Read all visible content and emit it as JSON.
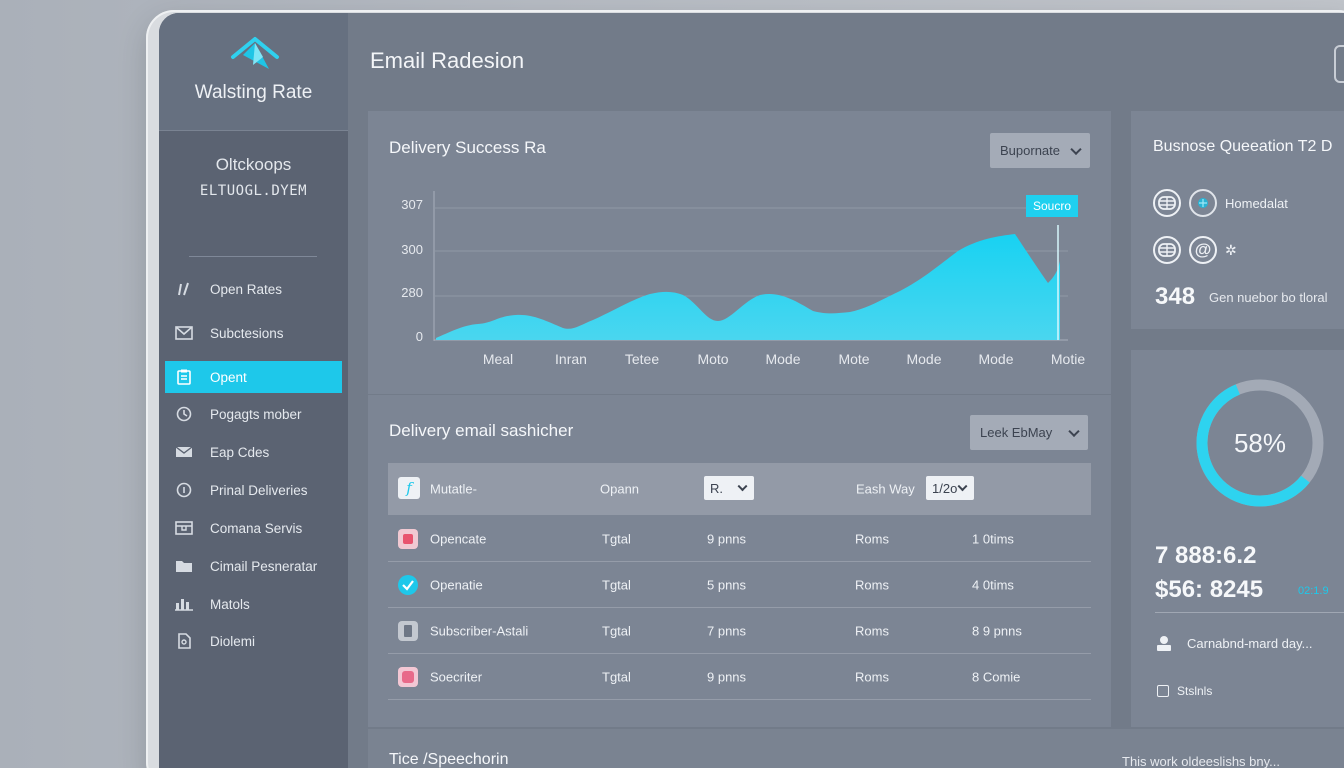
{
  "brand": {
    "name": "Walsting Rate"
  },
  "org": {
    "name": "Oltckoops",
    "subtitle": "ELTUOGL.DYEM"
  },
  "sidebar": {
    "items": [
      {
        "label": "Open Rates",
        "icon": "chart-icon"
      },
      {
        "label": "Subctesions",
        "icon": "envelope-icon"
      },
      {
        "label": "Opent",
        "icon": "clipboard-icon",
        "active": true
      },
      {
        "label": "Pogagts mober",
        "icon": "clock-icon"
      },
      {
        "label": "Eap Cdes",
        "icon": "mail-icon"
      },
      {
        "label": "Prinal Deliveries",
        "icon": "info-icon"
      },
      {
        "label": "Comana Servis",
        "icon": "inbox-icon"
      },
      {
        "label": "Cimail Pesneratar",
        "icon": "folder-icon"
      },
      {
        "label": "Matols",
        "icon": "bar-chart-icon"
      },
      {
        "label": "Diolemi",
        "icon": "document-icon"
      }
    ]
  },
  "header": {
    "title": "Email Radesion"
  },
  "delivery_chart": {
    "title": "Delivery Success Ra",
    "dropdown": "Bupornate",
    "badge": "Soucro",
    "y_ticks": [
      "307",
      "300",
      "280",
      "0"
    ],
    "x_ticks": [
      "Meal",
      "Inran",
      "Tetee",
      "Moto",
      "Mode",
      "Mote",
      "Mode",
      "Mode",
      "Motie"
    ]
  },
  "table": {
    "title": "Delivery email sashicher",
    "dropdown": "Leek EbMay",
    "header": {
      "col1": "Mutatle‑",
      "col2": "Opann",
      "col3_select": "R.",
      "col4": "Eash Way",
      "col5_select": "1/2o"
    },
    "rows": [
      {
        "name": "Opencate",
        "c2": "Tgtal",
        "c3": "9 pnns",
        "c4": "Roms",
        "c5": "1 0tims",
        "icon_color": "#e8546e"
      },
      {
        "name": "Openatie",
        "c2": "Tgtal",
        "c3": "5 pnns",
        "c4": "Roms",
        "c5": "4 0tims",
        "icon_color": "#1ec8ea"
      },
      {
        "name": "Subscriber‑Astali",
        "c2": "Tgtal",
        "c3": "7 pnns",
        "c4": "Roms",
        "c5": "8 9 pnns",
        "icon_color": "#a9b0bc"
      },
      {
        "name": "Soecriter",
        "c2": "Tgtal",
        "c3": "9 pnns",
        "c4": "Roms",
        "c5": "8 Comie",
        "icon_color": "#e86a8a"
      }
    ]
  },
  "bottom": {
    "title": "Tice /Speechorin",
    "note": "This work oldeeslishs bny..."
  },
  "business": {
    "title": "Busnose Queeation T2 D",
    "line1_label": "Homedalat",
    "stat_value": "348",
    "stat_label": "Gen nuebor bo tloral"
  },
  "gauge": {
    "percent_label": "58%",
    "fraction": 0.58,
    "value1": "7 888:6.2",
    "value2": "$56: 8245",
    "value2_note": "02:1.9",
    "user_line": "Carnabnd‑mard day...",
    "footer": "Stslnls"
  },
  "colors": {
    "accent": "#1ec8ea",
    "sidebar": "#5b6372",
    "card": "#7c8594"
  }
}
